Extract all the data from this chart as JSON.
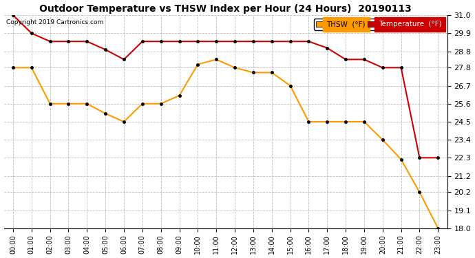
{
  "title": "Outdoor Temperature vs THSW Index per Hour (24 Hours)  20190113",
  "copyright": "Copyright 2019 Cartronics.com",
  "hours": [
    "00:00",
    "01:00",
    "02:00",
    "03:00",
    "04:00",
    "05:00",
    "06:00",
    "07:00",
    "08:00",
    "09:00",
    "10:00",
    "11:00",
    "12:00",
    "13:00",
    "14:00",
    "15:00",
    "16:00",
    "17:00",
    "18:00",
    "19:00",
    "20:00",
    "21:00",
    "22:00",
    "23:00"
  ],
  "temperature": [
    31.0,
    29.9,
    29.4,
    29.4,
    29.4,
    28.9,
    28.3,
    29.4,
    29.4,
    29.4,
    29.4,
    29.4,
    29.4,
    29.4,
    29.4,
    29.4,
    29.4,
    29.0,
    28.3,
    28.3,
    27.8,
    27.8,
    22.3,
    22.3
  ],
  "thsw": [
    27.8,
    27.8,
    25.6,
    25.6,
    25.6,
    25.0,
    24.5,
    25.6,
    25.6,
    26.1,
    28.0,
    28.3,
    27.8,
    27.5,
    27.5,
    26.7,
    24.5,
    24.5,
    24.5,
    24.5,
    23.4,
    22.2,
    20.2,
    18.0
  ],
  "temp_color": "#cc0000",
  "thsw_color": "#ff9900",
  "ylim_min": 18.0,
  "ylim_max": 31.0,
  "yticks": [
    18.0,
    19.1,
    20.2,
    21.2,
    22.3,
    23.4,
    24.5,
    25.6,
    26.7,
    27.8,
    28.8,
    29.9,
    31.0
  ],
  "bg_color": "#ffffff",
  "grid_color": "#bbbbbb",
  "legend_thsw_label": "THSW  (°F)",
  "legend_temp_label": "Temperature  (°F)",
  "thsw_legend_bg": "#ff9900",
  "temp_legend_bg": "#cc0000"
}
